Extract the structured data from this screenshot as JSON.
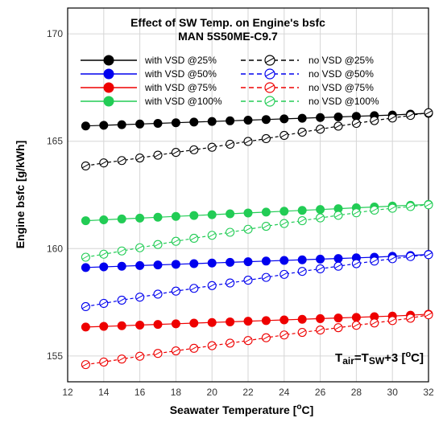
{
  "chart_data": {
    "type": "line",
    "title": "Effect of SW Temp. on Engine's bsfc",
    "subtitle": "MAN 5S50ME-C9.7",
    "xlabel": {
      "main": "Seawater Temperature [",
      "sup": "o",
      "tail": "C]"
    },
    "ylabel": "Engine bsfc [g/kWh]",
    "xlim": [
      12,
      32
    ],
    "ylim": [
      153.8,
      171.2
    ],
    "xticks": [
      "12",
      "14",
      "16",
      "18",
      "20",
      "22",
      "24",
      "26",
      "28",
      "30",
      "32"
    ],
    "yticks": [
      "155",
      "160",
      "165",
      "170"
    ],
    "grid": true,
    "legend_position": "top",
    "annotation": {
      "t": "T",
      "t_sub": "air",
      "eq": "=T",
      "eq_sub": "SW",
      "plus": "+3 [",
      "sup": "o",
      "tail": "C]"
    },
    "x": [
      13,
      14,
      15,
      16,
      17,
      18,
      19,
      20,
      21,
      22,
      23,
      24,
      25,
      26,
      27,
      28,
      29,
      30,
      31,
      32
    ],
    "series": [
      {
        "name": "with VSD @25%",
        "color": "#000000",
        "style": "solid",
        "marker": "filled",
        "values": [
          165.71,
          165.74,
          165.77,
          165.8,
          165.83,
          165.86,
          165.89,
          165.92,
          165.95,
          165.98,
          166.01,
          166.04,
          166.07,
          166.1,
          166.13,
          166.16,
          166.19,
          166.22,
          166.26,
          166.3
        ]
      },
      {
        "name": "with VSD @50%",
        "color": "#0000ee",
        "style": "solid",
        "marker": "filled",
        "values": [
          159.12,
          159.15,
          159.18,
          159.21,
          159.24,
          159.27,
          159.3,
          159.33,
          159.36,
          159.39,
          159.42,
          159.45,
          159.48,
          159.51,
          159.54,
          159.57,
          159.6,
          159.64,
          159.68,
          159.73
        ]
      },
      {
        "name": "with VSD @75%",
        "color": "#ee0000",
        "style": "solid",
        "marker": "filled",
        "values": [
          156.35,
          156.38,
          156.41,
          156.44,
          156.47,
          156.5,
          156.53,
          156.56,
          156.59,
          156.62,
          156.65,
          156.68,
          156.71,
          156.74,
          156.77,
          156.8,
          156.83,
          156.86,
          156.9,
          156.95
        ]
      },
      {
        "name": "with VSD @100%",
        "color": "#22cc55",
        "style": "solid",
        "marker": "filled",
        "values": [
          161.3,
          161.34,
          161.38,
          161.42,
          161.46,
          161.5,
          161.54,
          161.58,
          161.62,
          161.66,
          161.7,
          161.74,
          161.78,
          161.82,
          161.86,
          161.9,
          161.94,
          161.98,
          162.02,
          162.06
        ]
      },
      {
        "name": "no VSD @25%",
        "color": "#000000",
        "style": "dashed",
        "marker": "open",
        "values": [
          163.85,
          163.99,
          164.1,
          164.22,
          164.35,
          164.48,
          164.6,
          164.72,
          164.86,
          164.99,
          165.12,
          165.27,
          165.42,
          165.56,
          165.7,
          165.83,
          165.96,
          166.08,
          166.2,
          166.33
        ]
      },
      {
        "name": "no VSD @50%",
        "color": "#0000ee",
        "style": "dashed",
        "marker": "open",
        "values": [
          157.3,
          157.45,
          157.6,
          157.74,
          157.88,
          158.02,
          158.15,
          158.28,
          158.4,
          158.53,
          158.66,
          158.8,
          158.94,
          159.06,
          159.18,
          159.3,
          159.42,
          159.53,
          159.63,
          159.72
        ]
      },
      {
        "name": "no VSD @75%",
        "color": "#ee0000",
        "style": "dashed",
        "marker": "open",
        "values": [
          154.6,
          154.72,
          154.86,
          154.99,
          155.12,
          155.24,
          155.36,
          155.48,
          155.6,
          155.72,
          155.85,
          155.98,
          156.1,
          156.21,
          156.32,
          156.43,
          156.54,
          156.65,
          156.76,
          156.92
        ]
      },
      {
        "name": "no VSD @100%",
        "color": "#22cc55",
        "style": "dashed",
        "marker": "open",
        "values": [
          159.6,
          159.74,
          159.89,
          160.04,
          160.19,
          160.34,
          160.48,
          160.62,
          160.76,
          160.9,
          161.04,
          161.17,
          161.3,
          161.43,
          161.55,
          161.67,
          161.79,
          161.88,
          161.96,
          162.04
        ]
      }
    ]
  }
}
